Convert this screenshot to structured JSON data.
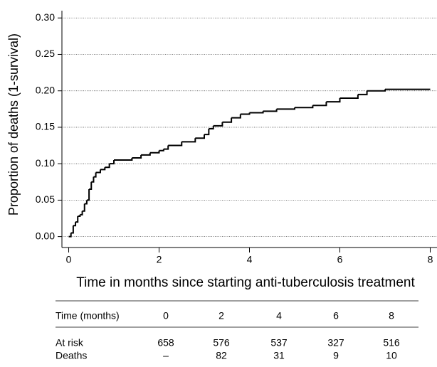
{
  "chart_data": {
    "type": "step",
    "xlabel": "Time in months since starting anti-tuberculosis treatment",
    "ylabel": "Proportion of deaths (1-survival)",
    "xlim": [
      -0.15,
      8.15
    ],
    "ylim": [
      -0.015,
      0.31
    ],
    "xticks": [
      0,
      2,
      4,
      6,
      8
    ],
    "yticks": [
      {
        "value": 0,
        "label": "0.00"
      },
      {
        "value": 0.05,
        "label": "0.05"
      },
      {
        "value": 0.1,
        "label": "0.10"
      },
      {
        "value": 0.15,
        "label": "0.15"
      },
      {
        "value": 0.2,
        "label": "0.20"
      },
      {
        "value": 0.25,
        "label": "0.25"
      },
      {
        "value": 0.3,
        "label": "0.30"
      }
    ],
    "grid": true,
    "color": "#000000",
    "x": [
      0,
      0.05,
      0.1,
      0.15,
      0.2,
      0.25,
      0.3,
      0.35,
      0.4,
      0.45,
      0.5,
      0.55,
      0.6,
      0.7,
      0.8,
      0.9,
      1.0,
      1.4,
      1.6,
      1.8,
      2.0,
      2.1,
      2.2,
      2.5,
      2.8,
      3.0,
      3.1,
      3.2,
      3.4,
      3.6,
      3.8,
      4.0,
      4.3,
      4.6,
      5.0,
      5.4,
      5.7,
      6.0,
      6.4,
      6.6,
      7.0,
      8.0
    ],
    "y": [
      0,
      0.005,
      0.015,
      0.02,
      0.028,
      0.03,
      0.035,
      0.045,
      0.05,
      0.065,
      0.075,
      0.082,
      0.088,
      0.092,
      0.095,
      0.1,
      0.105,
      0.108,
      0.112,
      0.115,
      0.118,
      0.12,
      0.125,
      0.13,
      0.135,
      0.14,
      0.148,
      0.152,
      0.157,
      0.163,
      0.168,
      0.17,
      0.172,
      0.175,
      0.177,
      0.18,
      0.185,
      0.19,
      0.195,
      0.2,
      0.202,
      0.202
    ],
    "table": {
      "header": [
        "Time (months)",
        "0",
        "2",
        "4",
        "6",
        "8"
      ],
      "rows": [
        [
          "At risk",
          "658",
          "576",
          "537",
          "327",
          "516"
        ],
        [
          "Deaths",
          "–",
          "82",
          "31",
          "9",
          "10"
        ]
      ]
    }
  }
}
